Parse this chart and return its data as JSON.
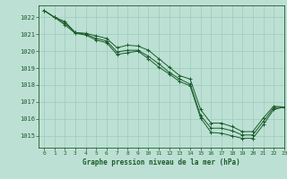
{
  "title": "Graphe pression niveau de la mer (hPa)",
  "bg_color": "#bde0d4",
  "grid_color": "#99ccbb",
  "line_color": "#1a5c2a",
  "xlim": [
    -0.5,
    23
  ],
  "ylim": [
    1014.3,
    1022.7
  ],
  "yticks": [
    1015,
    1016,
    1017,
    1018,
    1019,
    1020,
    1021,
    1022
  ],
  "xticks": [
    0,
    1,
    2,
    3,
    4,
    5,
    6,
    7,
    8,
    9,
    10,
    11,
    12,
    13,
    14,
    15,
    16,
    17,
    18,
    19,
    20,
    21,
    22,
    23
  ],
  "series": [
    [
      1022.4,
      1022.0,
      1021.75,
      1021.1,
      1021.05,
      1020.9,
      1020.75,
      1020.2,
      1020.35,
      1020.3,
      1020.05,
      1019.55,
      1019.05,
      1018.55,
      1018.35,
      1016.55,
      1015.75,
      1015.75,
      1015.55,
      1015.25,
      1015.25,
      1016.05,
      1016.75,
      1016.7
    ],
    [
      1022.4,
      1022.0,
      1021.65,
      1021.1,
      1021.0,
      1020.75,
      1020.6,
      1019.95,
      1020.05,
      1020.05,
      1019.7,
      1019.25,
      1018.75,
      1018.35,
      1018.05,
      1016.2,
      1015.45,
      1015.45,
      1015.3,
      1015.05,
      1015.05,
      1015.85,
      1016.65,
      1016.7
    ],
    [
      1022.4,
      1022.0,
      1021.55,
      1021.05,
      1020.95,
      1020.65,
      1020.5,
      1019.8,
      1019.9,
      1020.0,
      1019.55,
      1019.05,
      1018.65,
      1018.2,
      1017.95,
      1016.05,
      1015.2,
      1015.15,
      1015.0,
      1014.85,
      1014.85,
      1015.65,
      1016.55,
      1016.7
    ]
  ]
}
